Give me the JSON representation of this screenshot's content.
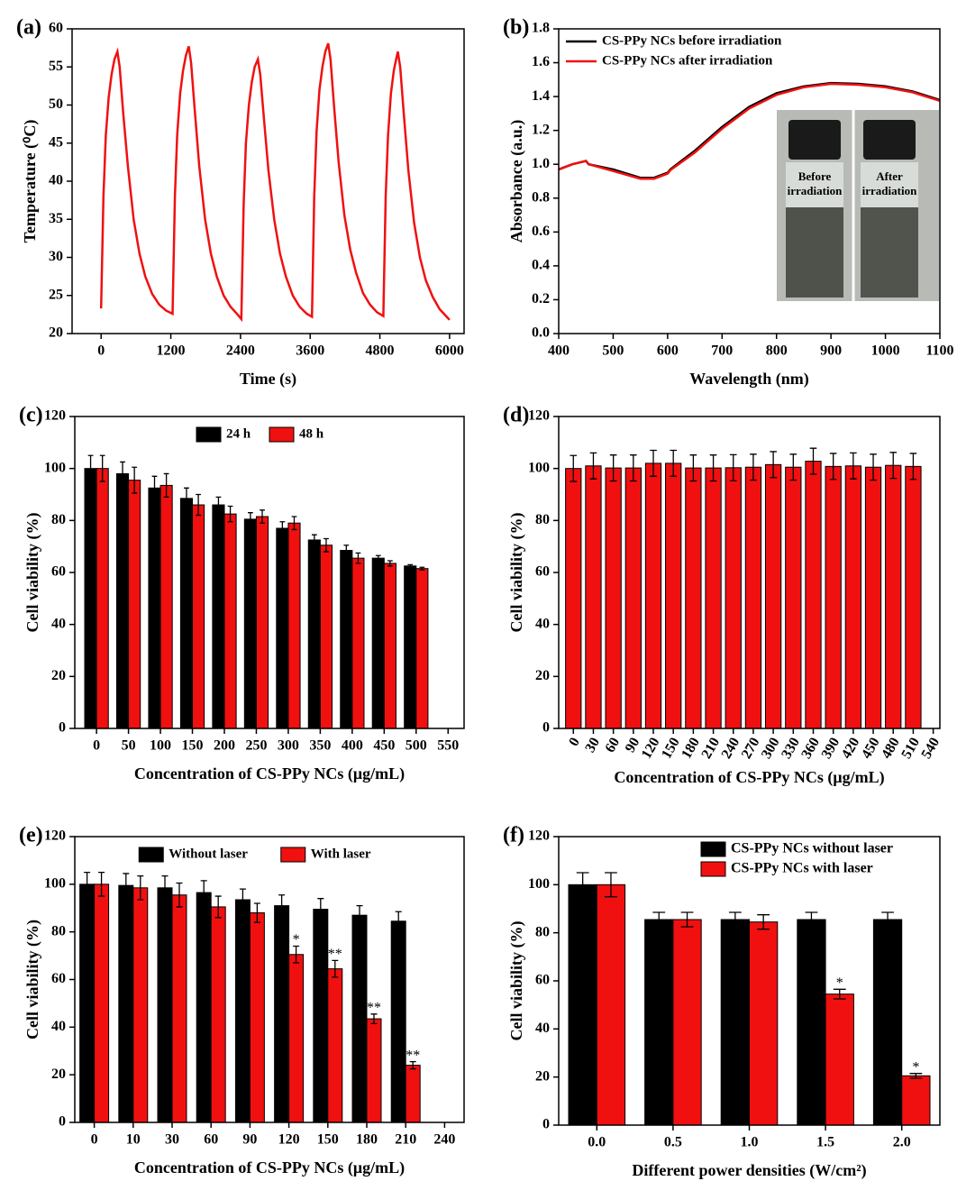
{
  "chart_data": [
    {
      "type": "line",
      "panel_label": "(a)",
      "x_label": "Time (s)",
      "y_label": "Temperature (⁰C)",
      "xlim": [
        -500,
        6250
      ],
      "xticks": [
        0,
        1200,
        2400,
        3600,
        4800,
        6000
      ],
      "ylim": [
        20,
        60
      ],
      "yticks": [
        20,
        25,
        30,
        35,
        40,
        45,
        50,
        55,
        60
      ],
      "x": [
        0,
        40,
        80,
        130,
        180,
        230,
        280,
        320,
        380,
        460,
        560,
        660,
        760,
        880,
        1000,
        1120,
        1230,
        1270,
        1310,
        1360,
        1410,
        1460,
        1510,
        1550,
        1610,
        1690,
        1790,
        1890,
        1990,
        2110,
        2230,
        2350,
        2414,
        2454,
        2494,
        2544,
        2594,
        2644,
        2700,
        2740,
        2800,
        2880,
        2980,
        3080,
        3180,
        3300,
        3420,
        3540,
        3630,
        3670,
        3710,
        3760,
        3810,
        3860,
        3910,
        3950,
        4010,
        4090,
        4190,
        4290,
        4390,
        4510,
        4630,
        4750,
        4860,
        4900,
        4940,
        4990,
        5040,
        5080,
        5110,
        5150,
        5210,
        5290,
        5390,
        5490,
        5590,
        5710,
        5830,
        5950,
        6000
      ],
      "series": [
        {
          "color": "#f01010",
          "values": [
            23.3,
            38,
            46,
            51,
            54,
            56,
            57,
            55,
            49,
            42,
            35,
            30.5,
            27.5,
            25.2,
            23.8,
            23,
            22.6,
            38,
            46,
            51.5,
            54.5,
            56.5,
            57.7,
            55.5,
            49.5,
            42,
            35,
            30.5,
            27.5,
            25,
            23.5,
            22.5,
            21.9,
            37,
            45,
            50,
            53,
            55,
            56,
            54,
            48.5,
            41.5,
            35,
            30.5,
            27.5,
            25,
            23.5,
            22.6,
            22.2,
            38,
            46.5,
            52,
            55,
            57,
            58.1,
            56,
            50,
            42.5,
            35.5,
            31,
            28,
            25.3,
            23.8,
            22.8,
            22.3,
            38,
            46,
            51.5,
            54.5,
            56,
            57,
            55,
            49,
            41.5,
            34.5,
            30,
            27,
            24.8,
            23.2,
            22.2,
            21.8
          ]
        }
      ]
    },
    {
      "type": "line",
      "panel_label": "(b)",
      "x_label": "Wavelength (nm)",
      "y_label": "Absorbance (a.u.)",
      "legend": "top-left",
      "xlim": [
        400,
        1100
      ],
      "xticks": [
        400,
        500,
        600,
        700,
        800,
        900,
        1000,
        1100
      ],
      "ylim": [
        0,
        1.8
      ],
      "yticks": [
        {
          "value": 0,
          "label": "0.0"
        },
        0.2,
        0.4,
        0.6,
        0.8,
        {
          "value": 1,
          "label": "1.0"
        },
        1.2,
        1.4,
        1.6,
        1.8
      ],
      "x": [
        400,
        425,
        450,
        455,
        500,
        550,
        575,
        600,
        605,
        650,
        700,
        750,
        800,
        850,
        900,
        950,
        1000,
        1050,
        1100
      ],
      "series": [
        {
          "name": "CS-PPy NCs before irradiation",
          "color": "#000000",
          "values": [
            0.97,
            1.0,
            1.02,
            1.0,
            0.97,
            0.92,
            0.92,
            0.95,
            0.97,
            1.08,
            1.22,
            1.34,
            1.42,
            1.46,
            1.48,
            1.475,
            1.46,
            1.43,
            1.38
          ]
        },
        {
          "name": "CS-PPy NCs after irradiation",
          "color": "#f01010",
          "values": [
            0.97,
            1.0,
            1.02,
            1.0,
            0.96,
            0.915,
            0.915,
            0.945,
            0.965,
            1.07,
            1.21,
            1.33,
            1.41,
            1.455,
            1.475,
            1.47,
            1.455,
            1.425,
            1.375
          ]
        }
      ],
      "annotations": [
        "Before irradiation",
        "After irradiation"
      ]
    },
    {
      "type": "bar",
      "panel_label": "(c)",
      "x_label": "Concentration of CS-PPy NCs (μg/mL)",
      "y_label": "Cell viability (%)",
      "legend": "top",
      "xlim": [
        -34,
        575
      ],
      "xticks": [
        0,
        50,
        100,
        150,
        200,
        250,
        300,
        350,
        400,
        450,
        500,
        550
      ],
      "ylim": [
        0,
        120
      ],
      "yticks": [
        0,
        20,
        40,
        60,
        80,
        100,
        120
      ],
      "x": [
        0,
        50,
        100,
        150,
        200,
        250,
        300,
        350,
        400,
        450,
        500
      ],
      "series": [
        {
          "name": "24 h",
          "color": "#000000",
          "values": [
            100,
            98,
            92.5,
            88.5,
            86,
            80.5,
            77,
            72.5,
            68.5,
            65.5,
            62.5
          ],
          "errors": [
            5,
            4.5,
            4.5,
            4,
            3,
            2.5,
            2.5,
            2,
            2,
            1,
            0.5
          ]
        },
        {
          "name": "48 h",
          "color": "#f01010",
          "values": [
            100,
            95.5,
            93.5,
            86,
            82.5,
            81.5,
            79,
            70.5,
            65.5,
            63.5,
            61.5
          ],
          "errors": [
            5,
            5,
            4.5,
            4,
            3,
            2.5,
            2.5,
            2.5,
            2,
            1,
            0.5
          ]
        }
      ]
    },
    {
      "type": "bar",
      "panel_label": "(d)",
      "x_label": "Concentration of CS-PPy NCs (μg/mL)",
      "y_label": "Cell viability (%)",
      "xlim": [
        -22,
        550
      ],
      "xticks": [
        0,
        30,
        60,
        90,
        120,
        150,
        180,
        210,
        240,
        270,
        300,
        330,
        360,
        390,
        420,
        450,
        480,
        510,
        540
      ],
      "ylim": [
        0,
        120
      ],
      "yticks": [
        0,
        20,
        40,
        60,
        80,
        100,
        120
      ],
      "x": [
        0,
        30,
        60,
        90,
        120,
        150,
        180,
        210,
        240,
        270,
        300,
        330,
        360,
        390,
        420,
        450,
        480,
        510
      ],
      "series": [
        {
          "color": "#f01010",
          "values": [
            100,
            101,
            100.2,
            100.2,
            102,
            102,
            100.2,
            100.2,
            100.3,
            100.5,
            101.5,
            100.5,
            102.8,
            100.8,
            101,
            100.5,
            101.2,
            100.8
          ],
          "errors": [
            5,
            5,
            5,
            5,
            5,
            5,
            5,
            5,
            5,
            5,
            5,
            5,
            5,
            5,
            5,
            5,
            5,
            5
          ]
        }
      ]
    },
    {
      "type": "bar",
      "panel_label": "(e)",
      "x_label": "Concentration of CS-PPy NCs (μg/mL)",
      "y_label": "Cell viability (%)",
      "legend": "top",
      "categories": [
        "0",
        "10",
        "30",
        "60",
        "90",
        "120",
        "150",
        "180",
        "210",
        "240"
      ],
      "ylim": [
        0,
        120
      ],
      "yticks": [
        0,
        20,
        40,
        60,
        80,
        100,
        120
      ],
      "series": [
        {
          "name": "Without laser",
          "color": "#000000",
          "values": [
            100,
            99.5,
            98.5,
            96.5,
            93.5,
            91,
            89.5,
            87,
            84.5,
            null
          ],
          "errors": [
            5,
            5,
            5,
            5,
            4.5,
            4.5,
            4.5,
            4,
            4,
            null
          ]
        },
        {
          "name": "With laser",
          "color": "#f01010",
          "values": [
            100,
            98.5,
            95.5,
            90.5,
            88,
            70.5,
            64.5,
            43.5,
            24,
            null
          ],
          "errors": [
            5,
            5,
            5,
            4.5,
            4,
            3.5,
            3.5,
            2,
            1.5,
            null
          ],
          "significance": [
            null,
            null,
            null,
            null,
            null,
            "*",
            "**",
            "**",
            "**",
            null
          ]
        }
      ]
    },
    {
      "type": "bar",
      "panel_label": "(f)",
      "x_label": "Different power densities (W/cm²)",
      "y_label": "Cell viability (%)",
      "legend": "top-right",
      "categories": [
        "0.0",
        "0.5",
        "1.0",
        "1.5",
        "2.0"
      ],
      "ylim": [
        0,
        120
      ],
      "yticks": [
        0,
        20,
        40,
        60,
        80,
        100,
        120
      ],
      "series": [
        {
          "name": "CS-PPy NCs without laser",
          "color": "#000000",
          "values": [
            100,
            85.5,
            85.5,
            85.5,
            85.5
          ],
          "errors": [
            5,
            3,
            3,
            3,
            3
          ]
        },
        {
          "name": "CS-PPy NCs with laser",
          "color": "#f01010",
          "values": [
            100,
            85.5,
            84.5,
            54.5,
            20.5
          ],
          "errors": [
            5,
            3,
            3,
            2,
            1
          ],
          "significance": [
            null,
            null,
            null,
            "*",
            "*"
          ]
        }
      ]
    }
  ]
}
